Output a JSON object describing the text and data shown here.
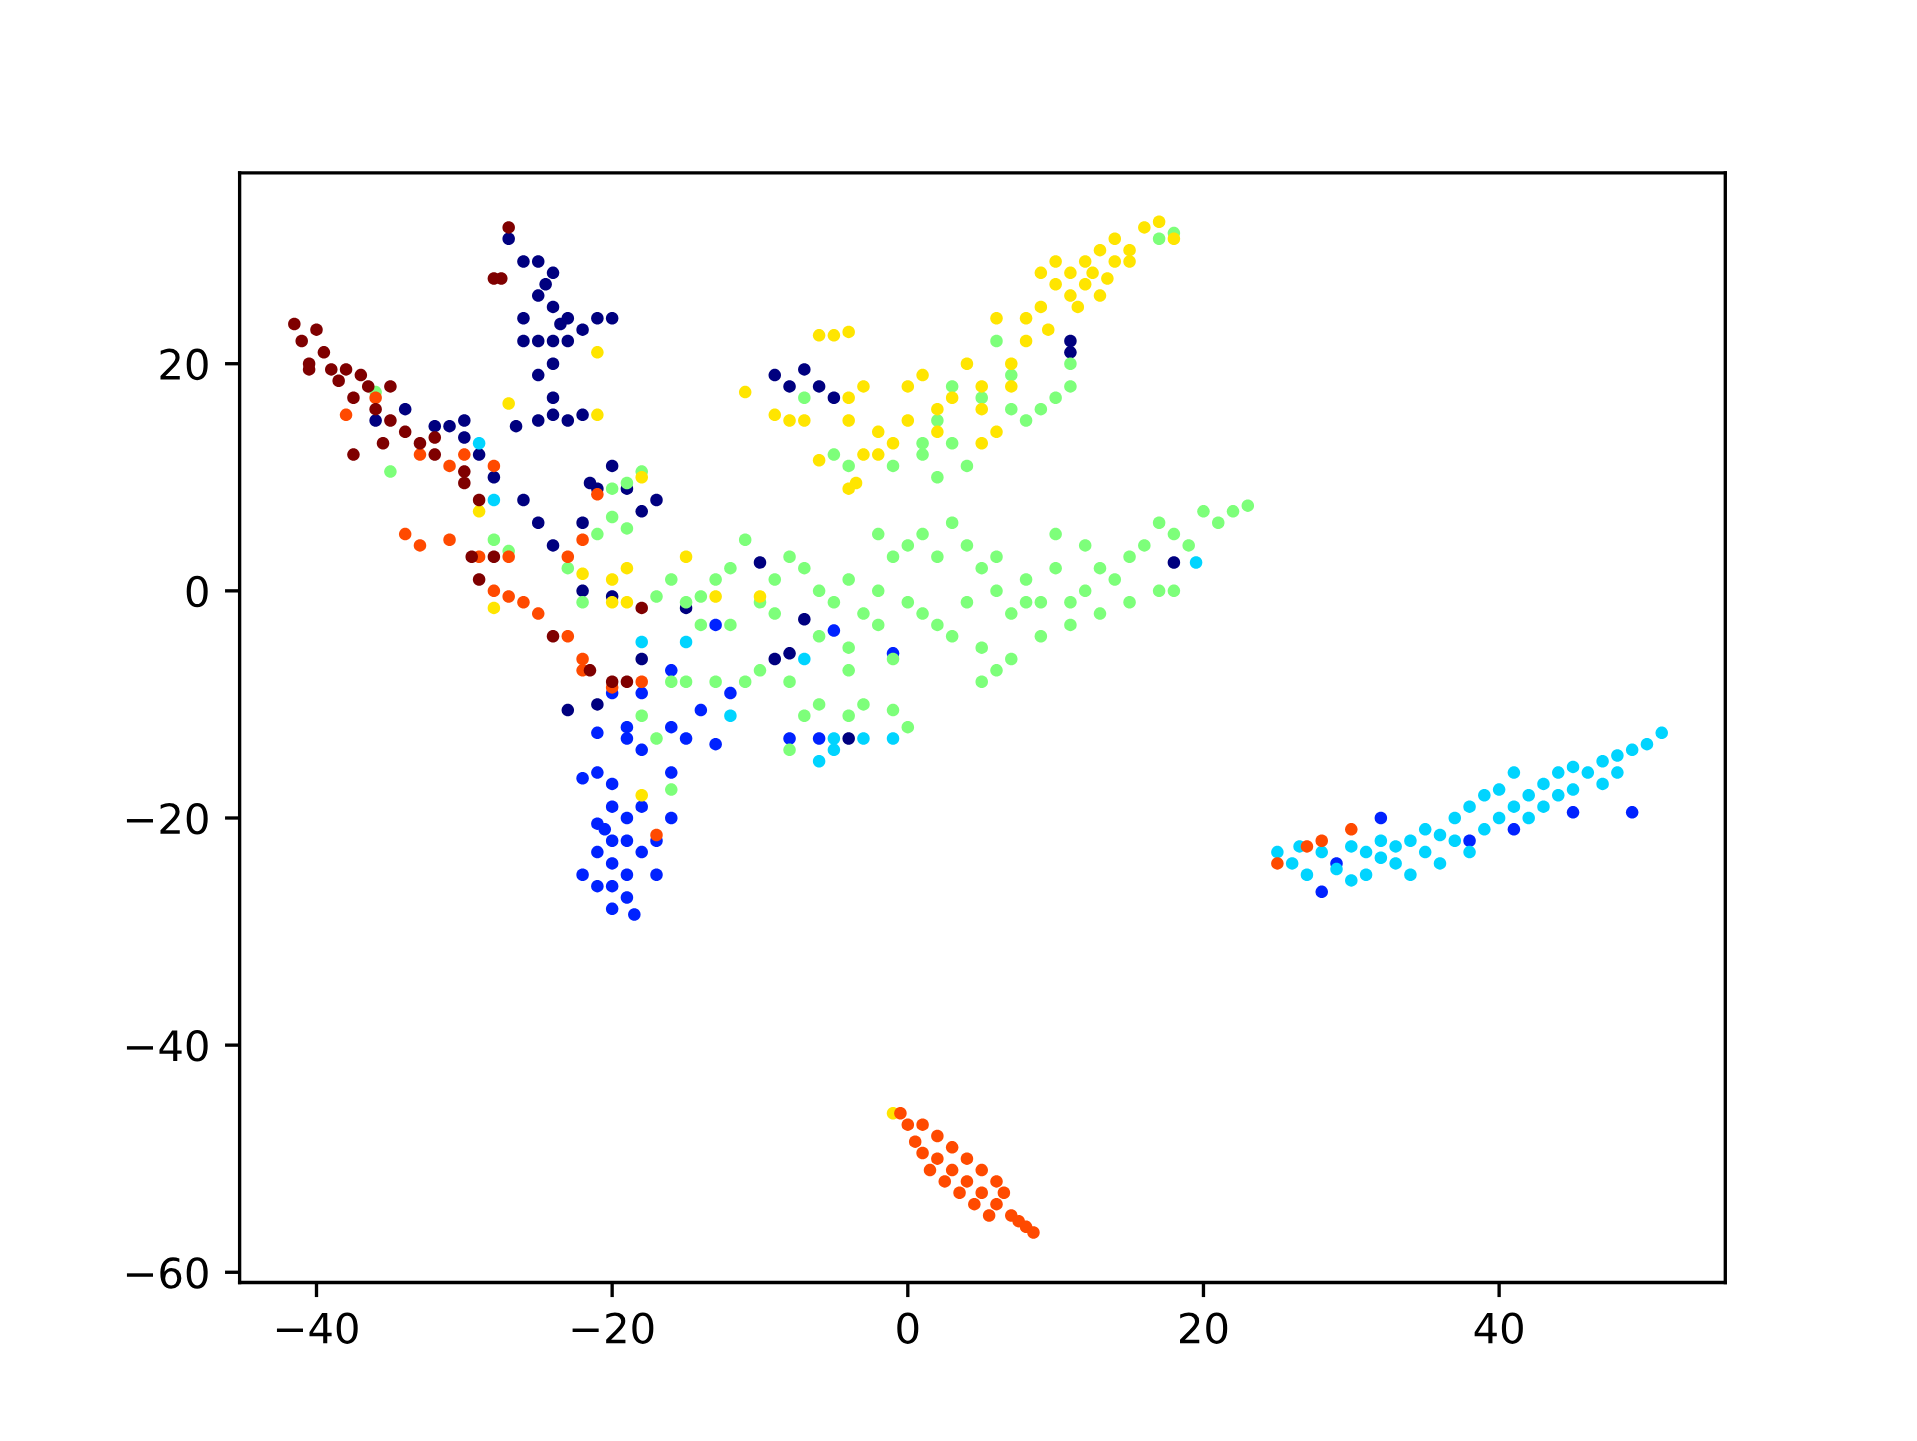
{
  "chart_data": {
    "type": "scatter",
    "marker": "circle",
    "grid": false,
    "legend": false,
    "xlim": [
      -45.2,
      55.3
    ],
    "ylim": [
      -60.9,
      36.8
    ],
    "xticks": [
      {
        "value": -40,
        "label": "−40"
      },
      {
        "value": -20,
        "label": "−20"
      },
      0,
      20,
      40
    ],
    "yticks": [
      {
        "value": -60,
        "label": "−60"
      },
      {
        "value": -40,
        "label": "−40"
      },
      {
        "value": -20,
        "label": "−20"
      },
      0,
      20
    ],
    "series": [
      {
        "color": "#00007f",
        "x": [
          -27,
          -26,
          -25,
          -24,
          -25,
          -26,
          -24,
          -23,
          -25,
          -24,
          -23,
          -26,
          -24,
          -25,
          -24,
          -24,
          -25,
          -23,
          -22,
          -21,
          -20,
          -22,
          -24.5,
          -23.5,
          -26.5,
          -34,
          -32,
          -31,
          -30,
          -29,
          -28,
          -26,
          -25,
          -24,
          -22,
          -21,
          -20,
          -19,
          -18,
          -17,
          -22,
          -20,
          -21,
          -23,
          -9,
          -8,
          -7,
          -6,
          -5,
          -9,
          -8,
          -4,
          11,
          11,
          18,
          -15,
          -10,
          -7,
          -36,
          -30,
          -21.5,
          -18
        ],
        "values": [
          31,
          29,
          29,
          28,
          26,
          24,
          25,
          24,
          22,
          22,
          22,
          22,
          20,
          19,
          17,
          15.5,
          15,
          15,
          15.5,
          24,
          24,
          23,
          27,
          23.5,
          14.5,
          16,
          14.5,
          14.5,
          13.5,
          12,
          10,
          8,
          6,
          4,
          6,
          9,
          11,
          9,
          7,
          8,
          0,
          -0.5,
          -10,
          -10.5,
          19,
          18,
          19.5,
          18,
          17,
          -6,
          -5.5,
          -13,
          22,
          21,
          2.5,
          -1.5,
          2.5,
          -2.5,
          15,
          15,
          9.5,
          -6
        ]
      },
      {
        "color": "#0022ff",
        "x": [
          -22,
          -21,
          -20,
          -20,
          -21,
          -19,
          -18,
          -20,
          -19,
          -21,
          -20,
          -19,
          -20,
          -19,
          -20,
          -18.5,
          -22,
          -18,
          -17,
          -16,
          -17,
          -21,
          -20.5,
          -18,
          -16,
          -15,
          -13,
          -12,
          -14,
          -19,
          -18,
          -20,
          -16,
          -5,
          -1,
          -8,
          -6,
          32,
          29,
          28,
          38,
          41,
          45,
          49,
          -13,
          -21,
          -19,
          -16
        ],
        "values": [
          -16.5,
          -16,
          -17,
          -19,
          -20.5,
          -20,
          -19,
          -22,
          -22,
          -23,
          -24,
          -25,
          -26,
          -27,
          -28,
          -28.5,
          -25,
          -23,
          -22,
          -20,
          -25,
          -26,
          -21,
          -14,
          -12,
          -13,
          -13.5,
          -9,
          -10.5,
          -12,
          -9,
          -9,
          -7,
          -3.5,
          -5.5,
          -13,
          -13,
          -20,
          -24,
          -26.5,
          -22,
          -21,
          -19.5,
          -19.5,
          -3,
          -12.5,
          -13,
          -16
        ]
      },
      {
        "color": "#00d4ff",
        "x": [
          25,
          26,
          27,
          28,
          29,
          30,
          30,
          31,
          31,
          32,
          33,
          33,
          34,
          35,
          35,
          36,
          36,
          37,
          37,
          38,
          38,
          39,
          39,
          40,
          40,
          41,
          41,
          42,
          42,
          43,
          43,
          44,
          44,
          45,
          45,
          46,
          47,
          47,
          48,
          48,
          49,
          50,
          51,
          26.5,
          32,
          34,
          -18,
          -15,
          -7,
          -12,
          -5,
          -6,
          -5,
          -3,
          -1,
          19.5,
          -29,
          -28
        ],
        "values": [
          -23,
          -24,
          -25,
          -23,
          -24.5,
          -25.5,
          -22.5,
          -25,
          -23,
          -22,
          -24,
          -22.5,
          -25,
          -23,
          -21,
          -24,
          -21.5,
          -22,
          -20,
          -23,
          -19,
          -21,
          -18,
          -20,
          -17.5,
          -19,
          -16,
          -18,
          -20,
          -17,
          -19,
          -16,
          -18,
          -17.5,
          -15.5,
          -16,
          -17,
          -15,
          -14.5,
          -16,
          -14,
          -13.5,
          -12.5,
          -22.5,
          -23.5,
          -22,
          -4.5,
          -4.5,
          -6,
          -11,
          -13,
          -15,
          -14,
          -13,
          -13,
          2.5,
          13,
          8
        ]
      },
      {
        "color": "#7dff7a",
        "x": [
          -36,
          -35,
          -28,
          -27,
          -23,
          -22,
          -20,
          -19,
          -18,
          -20,
          -21,
          -19,
          -17,
          -16,
          -15,
          -14,
          -13,
          -12,
          -11,
          -12,
          -14,
          -10,
          -9,
          -8,
          -7,
          -6,
          -5,
          -4,
          -3,
          -2,
          -1,
          0,
          1,
          2,
          3,
          4,
          5,
          6,
          7,
          8,
          9,
          10,
          11,
          12,
          13,
          14,
          15,
          16,
          17,
          18,
          19,
          20,
          21,
          22,
          23,
          -2,
          -1,
          1,
          3,
          5,
          7,
          9,
          11,
          13,
          15,
          17,
          18,
          0,
          -16,
          -15,
          -13,
          -11,
          -10,
          -8,
          -7,
          -6,
          -4,
          -3,
          -1,
          0,
          -16,
          -18,
          -17,
          -4,
          -6,
          -9,
          2,
          3,
          2,
          4,
          3,
          5,
          7,
          8,
          9,
          10,
          11,
          11,
          6,
          7,
          -7,
          -5,
          -4,
          -1,
          1,
          1,
          18,
          17,
          8,
          6,
          4,
          2,
          10,
          12,
          -8,
          5,
          6,
          -2,
          -4
        ],
        "values": [
          17.5,
          10.5,
          4.5,
          3.5,
          2,
          -1,
          9,
          9.5,
          10.5,
          6.5,
          5,
          5.5,
          -0.5,
          1,
          -1,
          -0.5,
          1,
          2,
          4.5,
          -3,
          -3,
          -1,
          1,
          3,
          2,
          0,
          -1,
          1,
          -2,
          0,
          3,
          4,
          5,
          3,
          6,
          4,
          2,
          0,
          -2,
          1,
          -1,
          2,
          -1,
          0,
          2,
          1,
          3,
          4,
          6,
          5,
          4,
          7,
          6,
          7,
          7.5,
          -3,
          -6,
          -2,
          -4,
          -5,
          -6,
          -4,
          -3,
          -2,
          -1,
          0,
          0,
          -1,
          -8,
          -8,
          -8,
          -8,
          -7,
          -8,
          -11,
          -10,
          -11,
          -10,
          -10.5,
          -12,
          -17.5,
          -11,
          -13,
          -7,
          -4,
          -2,
          15,
          13,
          10,
          11,
          18,
          17,
          16,
          15,
          16,
          17,
          20,
          18,
          22,
          19,
          17,
          12,
          11,
          11,
          12,
          13,
          31.5,
          31,
          -1,
          3,
          -1,
          -3,
          5,
          4,
          -14,
          -8,
          -7,
          5,
          -5
        ]
      },
      {
        "color": "#ffe500",
        "x": [
          -28,
          -27,
          -29,
          -21,
          -21,
          -20,
          -19,
          -20,
          -19,
          -18,
          -15,
          -13,
          -10,
          -18,
          -11,
          -9,
          -8,
          -7,
          -6,
          -6,
          -5,
          -4,
          -4,
          -3,
          -4,
          -3.5,
          -2,
          -1,
          -2,
          -4,
          -3,
          0,
          0,
          1,
          2,
          2,
          3,
          4,
          5,
          5,
          6,
          6,
          7,
          7,
          8,
          8,
          9,
          9,
          10,
          10,
          11,
          11,
          12,
          12,
          13,
          13,
          14,
          14,
          15,
          16,
          17,
          18,
          11.5,
          9.5,
          12.5,
          -1,
          5,
          -22,
          13.5,
          15
        ],
        "values": [
          -1.5,
          16.5,
          7,
          21,
          15.5,
          1,
          2,
          -1,
          -1,
          10,
          3,
          -0.5,
          -0.5,
          -18,
          17.5,
          15.5,
          15,
          15,
          11.5,
          22.5,
          22.5,
          22.8,
          15,
          12,
          9,
          9.5,
          12,
          13,
          14,
          17,
          18,
          15,
          18,
          19,
          14,
          16,
          17,
          20,
          18,
          16,
          14,
          24,
          20,
          18,
          22,
          24,
          25,
          28,
          27,
          29,
          26,
          28,
          27,
          29,
          26,
          30,
          29,
          31,
          30,
          32,
          32.5,
          31,
          25,
          23,
          28,
          -46,
          13,
          1.5,
          27.5,
          29
        ]
      },
      {
        "color": "#ff4a00",
        "x": [
          -0.5,
          0,
          1,
          2,
          1,
          2,
          3,
          3,
          4,
          4,
          5,
          5,
          6,
          6,
          7,
          7.5,
          8,
          8.5,
          1.5,
          3.5,
          4.5,
          6.5,
          0.5,
          2.5,
          5.5,
          -38,
          -34,
          -33,
          -31,
          -28,
          -27,
          -29,
          -27,
          -25,
          -22,
          -22,
          -23,
          -23,
          -21,
          -18,
          -17,
          -36,
          -33,
          -31,
          -30,
          -28,
          -26,
          25,
          27,
          30,
          28,
          -22,
          -20
        ],
        "values": [
          -46,
          -47,
          -47,
          -48,
          -49.5,
          -50,
          -49,
          -51,
          -50,
          -52,
          -51,
          -53,
          -52,
          -54,
          -55,
          -55.5,
          -56,
          -56.5,
          -51,
          -53,
          -54,
          -53,
          -48.5,
          -52,
          -55,
          15.5,
          5,
          4,
          4.5,
          0,
          -0.5,
          3,
          3,
          -2,
          -6,
          -7,
          -4,
          3,
          8.5,
          -8,
          -21.5,
          17,
          12,
          11,
          12,
          11,
          -1,
          -24,
          -22.5,
          -21,
          -22,
          4.5,
          -8.5
        ]
      },
      {
        "color": "#7f0000",
        "x": [
          -41.5,
          -41,
          -40,
          -40.5,
          -39.5,
          -39,
          -38,
          -37,
          -36.5,
          -35,
          -37.5,
          -36,
          -35,
          -34,
          -33,
          -32,
          -30,
          -29,
          -28,
          -27.5,
          -27,
          -29,
          -28,
          -24,
          -20,
          -19,
          -18,
          -37.5,
          -40.5,
          -38.5,
          -35.5,
          -32,
          -30,
          -29.5,
          -21.5
        ],
        "values": [
          23.5,
          22,
          23,
          20,
          21,
          19.5,
          19.5,
          19,
          18,
          18,
          17,
          16,
          15,
          14,
          13,
          12,
          9.5,
          8,
          27.5,
          27.5,
          32,
          1,
          3,
          -4,
          -8,
          -8,
          -1.5,
          12,
          19.5,
          18.5,
          13,
          13.5,
          10.5,
          3,
          -7
        ]
      }
    ]
  }
}
